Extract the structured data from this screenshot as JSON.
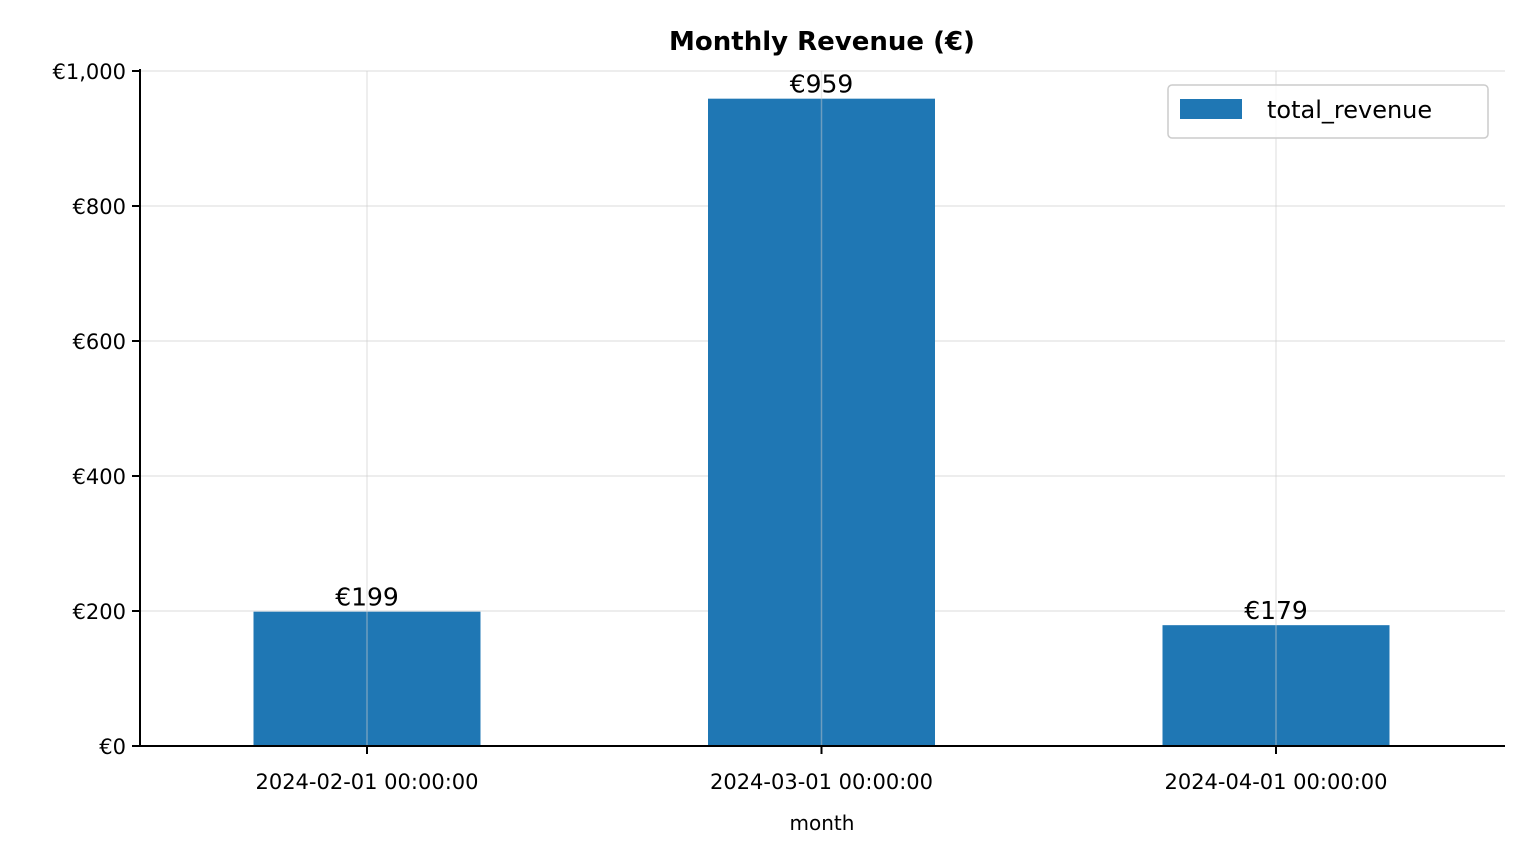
{
  "chart_data": {
    "type": "bar",
    "title": "Monthly Revenue (€)",
    "xlabel": "month",
    "ylabel": "",
    "categories": [
      "2024-02-01 00:00:00",
      "2024-03-01 00:00:00",
      "2024-04-01 00:00:00"
    ],
    "series": [
      {
        "name": "total_revenue",
        "values": [
          199,
          959,
          179
        ],
        "value_labels": [
          "€199",
          "€959",
          "€179"
        ],
        "color": "#1f77b4"
      }
    ],
    "ylim": [
      0,
      1000
    ],
    "yticks": [
      0,
      200,
      400,
      600,
      800,
      1000
    ],
    "ytick_labels": [
      "€0",
      "€200",
      "€400",
      "€600",
      "€800",
      "€1,000"
    ],
    "grid": true,
    "legend_position": "top-right"
  }
}
